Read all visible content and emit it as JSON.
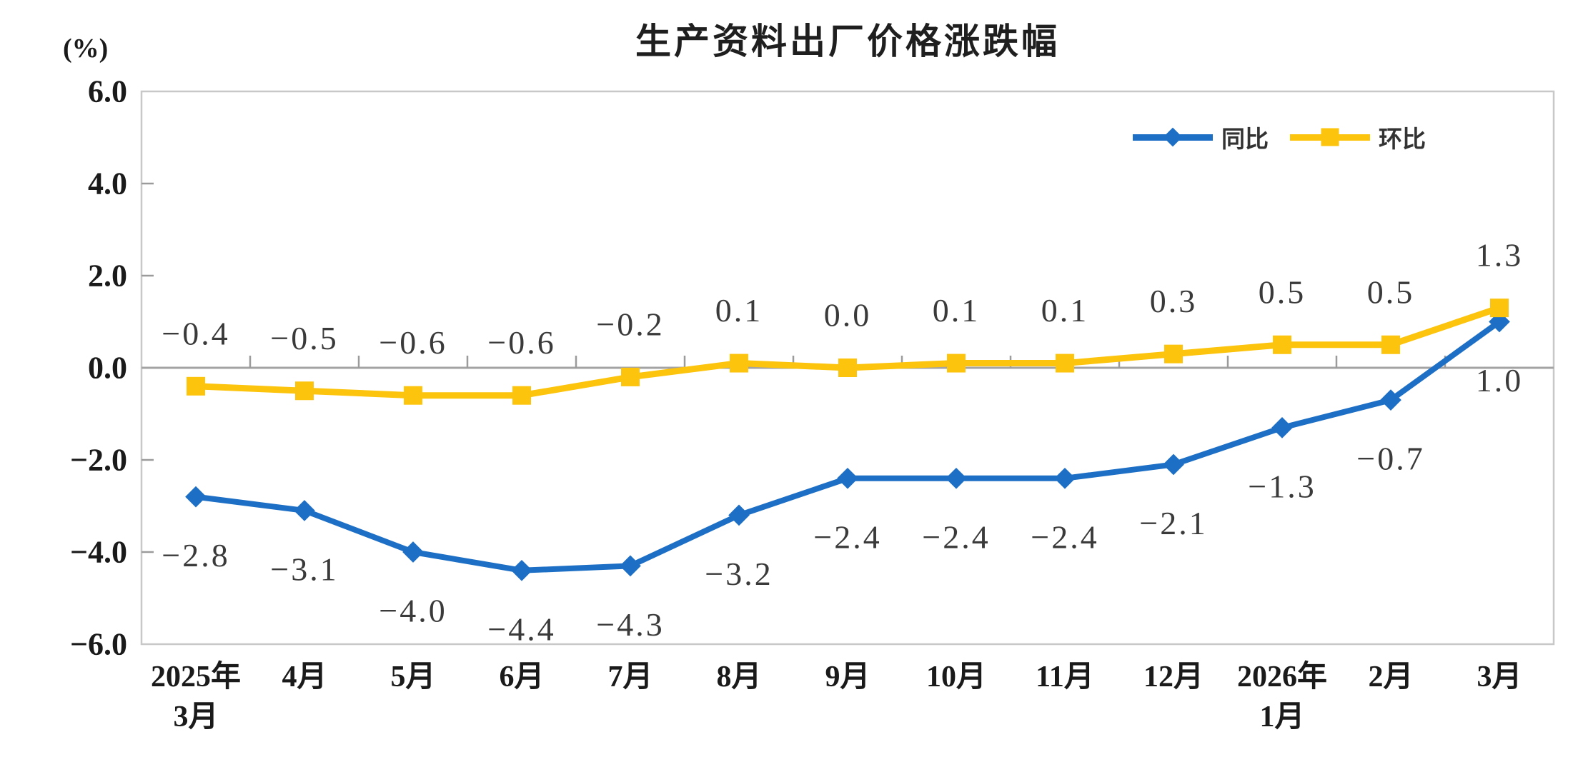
{
  "page": {
    "background": "#ffffff"
  },
  "chart_data": {
    "type": "line",
    "title": "生产资料出厂价格涨跌幅",
    "unit_label": "(%)",
    "categories": [
      "2025年\n3月",
      "4月",
      "5月",
      "6月",
      "7月",
      "8月",
      "9月",
      "10月",
      "11月",
      "12月",
      "2026年\n1月",
      "2月",
      "3月"
    ],
    "ylim": [
      -6.0,
      6.0
    ],
    "yticks": [
      6.0,
      4.0,
      2.0,
      0.0,
      -2.0,
      -4.0,
      -6.0
    ],
    "grid": false,
    "legend_position": "top-right-inside",
    "series": [
      {
        "name": "同比",
        "color": "#1D6FC5",
        "marker": "diamond",
        "label_position": "below",
        "values": [
          -2.8,
          -3.1,
          -4.0,
          -4.4,
          -4.3,
          -3.2,
          -2.4,
          -2.4,
          -2.4,
          -2.1,
          -1.3,
          -0.7,
          1.0
        ],
        "labels": [
          "-2.8",
          "-3.1",
          "-4.0",
          "-4.4",
          "-4.3",
          "-3.2",
          "-2.4",
          "-2.4",
          "-2.4",
          "-2.1",
          "-1.3",
          "-0.7",
          "1.0"
        ]
      },
      {
        "name": "环比",
        "color": "#FCC40D",
        "marker": "square",
        "label_position": "above",
        "values": [
          -0.4,
          -0.5,
          -0.6,
          -0.6,
          -0.2,
          0.1,
          0.0,
          0.1,
          0.1,
          0.3,
          0.5,
          0.5,
          1.3
        ],
        "labels": [
          "-0.4",
          "-0.5",
          "-0.6",
          "-0.6",
          "-0.2",
          "0.1",
          "0.0",
          "0.1",
          "0.1",
          "0.3",
          "0.5",
          "0.5",
          "1.3"
        ]
      }
    ],
    "colors": {
      "axis_line": "#A3A3A3",
      "plot_border": "#C8C8C8",
      "tick": "#9B9B9B",
      "axis_text": "#1a1a1a",
      "data_label_text": "#3a3a3a"
    }
  }
}
